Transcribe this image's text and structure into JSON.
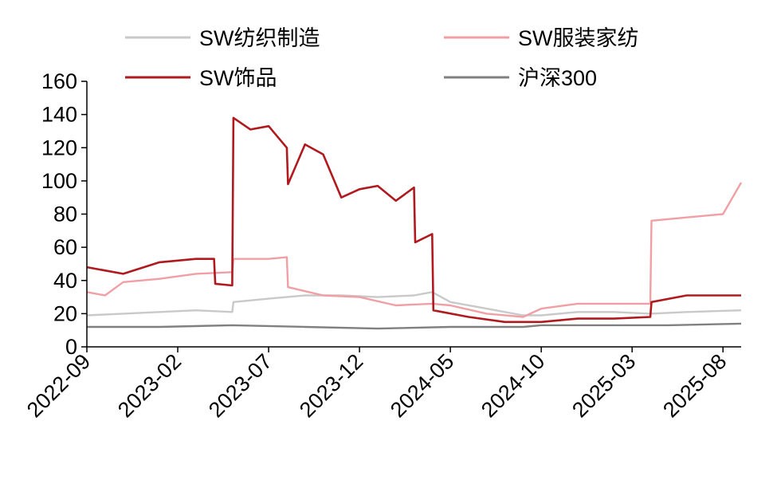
{
  "chart_data": {
    "type": "line",
    "xlabel": "",
    "ylabel": "",
    "ylim": [
      0,
      160
    ],
    "y_ticks": [
      0,
      20,
      40,
      60,
      80,
      100,
      120,
      140,
      160
    ],
    "x_ticks": [
      "2022-09",
      "2023-02",
      "2023-07",
      "2023-12",
      "2024-05",
      "2024-10",
      "2025-03",
      "2025-08"
    ],
    "x_range": [
      "2022-09",
      "2025-09"
    ],
    "grid": false,
    "legend_position": "top",
    "series": [
      {
        "name": "SW纺织制造",
        "color": "#c9c9c9",
        "points": [
          [
            "2022-09",
            19
          ],
          [
            "2022-11",
            20
          ],
          [
            "2023-01",
            21
          ],
          [
            "2023-03",
            22
          ],
          [
            "2023-05",
            21
          ],
          [
            "2023-05",
            27
          ],
          [
            "2023-07",
            29
          ],
          [
            "2023-09",
            31
          ],
          [
            "2023-11",
            31
          ],
          [
            "2024-01",
            30
          ],
          [
            "2024-03",
            31
          ],
          [
            "2024-04",
            33
          ],
          [
            "2024-05",
            27
          ],
          [
            "2024-07",
            23
          ],
          [
            "2024-09",
            19
          ],
          [
            "2024-10",
            19
          ],
          [
            "2024-12",
            21
          ],
          [
            "2025-02",
            21
          ],
          [
            "2025-04",
            20
          ],
          [
            "2025-06",
            21
          ],
          [
            "2025-09",
            22
          ]
        ]
      },
      {
        "name": "SW服装家纺",
        "color": "#f0a0a5",
        "points": [
          [
            "2022-09",
            33
          ],
          [
            "2022-10",
            31
          ],
          [
            "2022-11",
            39
          ],
          [
            "2023-01",
            41
          ],
          [
            "2023-03",
            44
          ],
          [
            "2023-05",
            45
          ],
          [
            "2023-05",
            53
          ],
          [
            "2023-07",
            53
          ],
          [
            "2023-08",
            54
          ],
          [
            "2023-08",
            36
          ],
          [
            "2023-10",
            31
          ],
          [
            "2023-12",
            30
          ],
          [
            "2024-02",
            25
          ],
          [
            "2024-04",
            26
          ],
          [
            "2024-05",
            25
          ],
          [
            "2024-07",
            20
          ],
          [
            "2024-09",
            18
          ],
          [
            "2024-10",
            23
          ],
          [
            "2024-12",
            26
          ],
          [
            "2025-02",
            26
          ],
          [
            "2025-04",
            26
          ],
          [
            "2025-04",
            76
          ],
          [
            "2025-06",
            78
          ],
          [
            "2025-08",
            80
          ],
          [
            "2025-09",
            99
          ]
        ]
      },
      {
        "name": "SW饰品",
        "color": "#b01a1e",
        "points": [
          [
            "2022-09",
            48
          ],
          [
            "2022-11",
            44
          ],
          [
            "2023-01",
            51
          ],
          [
            "2023-03",
            53
          ],
          [
            "2023-04",
            53
          ],
          [
            "2023-04",
            38
          ],
          [
            "2023-05",
            37
          ],
          [
            "2023-05",
            138
          ],
          [
            "2023-06",
            131
          ],
          [
            "2023-07",
            133
          ],
          [
            "2023-08",
            120
          ],
          [
            "2023-08",
            98
          ],
          [
            "2023-09",
            122
          ],
          [
            "2023-10",
            116
          ],
          [
            "2023-11",
            90
          ],
          [
            "2023-12",
            95
          ],
          [
            "2024-01",
            97
          ],
          [
            "2024-02",
            88
          ],
          [
            "2024-03",
            96
          ],
          [
            "2024-03",
            63
          ],
          [
            "2024-04",
            68
          ],
          [
            "2024-04",
            22
          ],
          [
            "2024-06",
            18
          ],
          [
            "2024-08",
            15
          ],
          [
            "2024-10",
            15
          ],
          [
            "2024-12",
            17
          ],
          [
            "2025-02",
            17
          ],
          [
            "2025-04",
            18
          ],
          [
            "2025-04",
            27
          ],
          [
            "2025-06",
            31
          ],
          [
            "2025-09",
            31
          ]
        ]
      },
      {
        "name": "沪深300",
        "color": "#808080",
        "points": [
          [
            "2022-09",
            12
          ],
          [
            "2023-01",
            12
          ],
          [
            "2023-05",
            13
          ],
          [
            "2023-09",
            12
          ],
          [
            "2024-01",
            11
          ],
          [
            "2024-05",
            12
          ],
          [
            "2024-09",
            12
          ],
          [
            "2024-10",
            13
          ],
          [
            "2025-01",
            13
          ],
          [
            "2025-05",
            13
          ],
          [
            "2025-09",
            14
          ]
        ]
      }
    ]
  }
}
